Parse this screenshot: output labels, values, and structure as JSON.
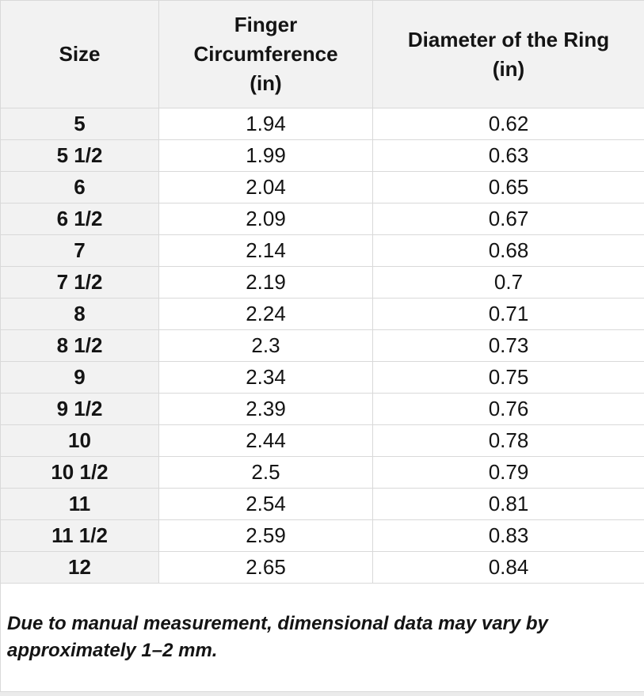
{
  "table": {
    "columns": [
      {
        "label": "Size"
      },
      {
        "label": "Finger\nCircumference\n(in)"
      },
      {
        "label": "Diameter of the Ring\n(in)"
      }
    ],
    "rows": [
      {
        "size": "5",
        "circumference": "1.94",
        "diameter": "0.62"
      },
      {
        "size": "5 1/2",
        "circumference": "1.99",
        "diameter": "0.63"
      },
      {
        "size": "6",
        "circumference": "2.04",
        "diameter": "0.65"
      },
      {
        "size": "6 1/2",
        "circumference": "2.09",
        "diameter": "0.67"
      },
      {
        "size": "7",
        "circumference": "2.14",
        "diameter": "0.68"
      },
      {
        "size": "7 1/2",
        "circumference": "2.19",
        "diameter": "0.7"
      },
      {
        "size": "8",
        "circumference": "2.24",
        "diameter": "0.71"
      },
      {
        "size": "8 1/2",
        "circumference": "2.3",
        "diameter": "0.73"
      },
      {
        "size": "9",
        "circumference": "2.34",
        "diameter": "0.75"
      },
      {
        "size": "9 1/2",
        "circumference": "2.39",
        "diameter": "0.76"
      },
      {
        "size": "10",
        "circumference": "2.44",
        "diameter": "0.78"
      },
      {
        "size": "10 1/2",
        "circumference": "2.5",
        "diameter": "0.79"
      },
      {
        "size": "11",
        "circumference": "2.54",
        "diameter": "0.81"
      },
      {
        "size": "11 1/2",
        "circumference": "2.59",
        "diameter": "0.83"
      },
      {
        "size": "12",
        "circumference": "2.65",
        "diameter": "0.84"
      }
    ]
  },
  "note": {
    "text": "Due to manual measurement, dimensional data may vary by\napproximately 1–2 mm."
  },
  "colors": {
    "header_bg": "#f2f2f2",
    "cell_bg": "#ffffff",
    "border": "#d9d9d9",
    "text": "#141414",
    "page_bg": "#ebebeb"
  }
}
